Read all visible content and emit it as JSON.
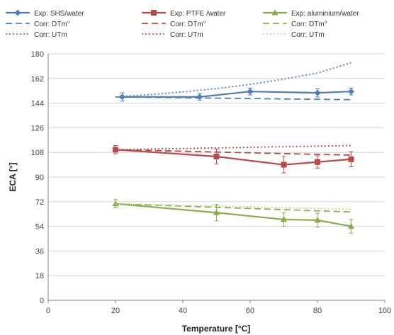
{
  "chart_data": {
    "type": "line",
    "title": "",
    "xlabel": "Temperature [°C]",
    "ylabel": "ECA [°]",
    "xlim": [
      0,
      100
    ],
    "ylim": [
      0,
      180
    ],
    "xticks": [
      0,
      20,
      40,
      60,
      80,
      100
    ],
    "yticks": [
      0,
      18,
      36,
      54,
      72,
      90,
      108,
      126,
      144,
      162,
      180
    ],
    "grid": "horizontal",
    "legend_position": "top",
    "series": [
      {
        "name": "Exp: SHS/water",
        "style": "solid",
        "marker": "diamond",
        "color": "#4f7fb8",
        "x": [
          22,
          45,
          60,
          80,
          90
        ],
        "y": [
          148.5,
          148.5,
          152.5,
          151.5,
          152.5
        ],
        "err": [
          3,
          2.5,
          2.5,
          3,
          2.5
        ]
      },
      {
        "name": "Corr: DTm°",
        "style": "dashed",
        "marker": "none",
        "color": "#4f7fb8",
        "x": [
          20,
          90
        ],
        "y": [
          148.5,
          146.5
        ]
      },
      {
        "name": "Corr: UTm",
        "style": "dotted",
        "marker": "none",
        "color": "#4f7fb8",
        "x": [
          20,
          30,
          40,
          50,
          60,
          70,
          80,
          90
        ],
        "y": [
          148.5,
          150.2,
          152.2,
          154.6,
          157.7,
          161.5,
          166,
          173.5
        ]
      },
      {
        "name": "Exp:  PTFE /water",
        "style": "solid",
        "marker": "square",
        "color": "#b94a48",
        "x": [
          20,
          50,
          70,
          80,
          90
        ],
        "y": [
          110,
          105,
          99,
          101,
          103
        ],
        "err": [
          3,
          5.5,
          6,
          4.5,
          5.5
        ]
      },
      {
        "name": "Corr: DTm°",
        "style": "dashed",
        "marker": "none",
        "color": "#b94a48",
        "x": [
          20,
          90
        ],
        "y": [
          110,
          106
        ]
      },
      {
        "name": "Corr: UTm",
        "style": "dotted",
        "marker": "none",
        "color": "#b94a48",
        "x": [
          20,
          90
        ],
        "y": [
          110,
          113
        ]
      },
      {
        "name": "Exp: aluminium/water",
        "style": "solid",
        "marker": "triangle",
        "color": "#8cac4b",
        "x": [
          20,
          50,
          70,
          80,
          90
        ],
        "y": [
          70.5,
          64,
          59,
          58.5,
          54
        ],
        "err": [
          3,
          6,
          5,
          5,
          5
        ]
      },
      {
        "name": "Corr: DTm°",
        "style": "dashed",
        "marker": "none",
        "color": "#8cac4b",
        "x": [
          20,
          90
        ],
        "y": [
          70.5,
          64.5
        ]
      },
      {
        "name": "Corr: UTm",
        "style": "dotted",
        "marker": "none",
        "color": "#c2d494",
        "x": [
          20,
          90
        ],
        "y": [
          70.5,
          66.5
        ]
      }
    ]
  }
}
